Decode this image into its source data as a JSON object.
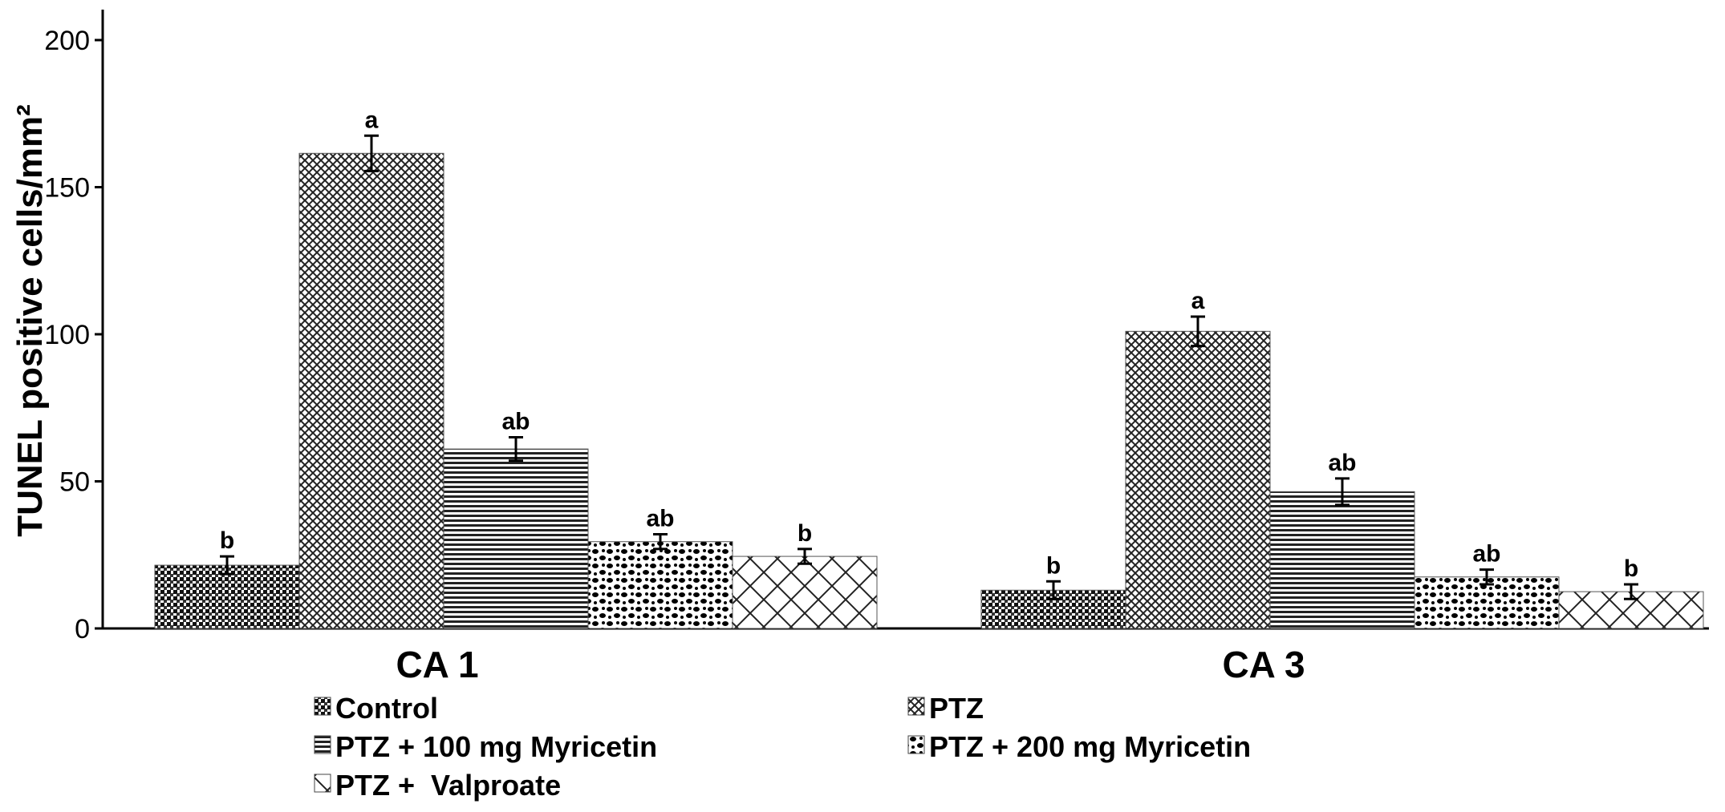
{
  "chart_data": {
    "type": "bar",
    "title": "",
    "xlabel": "",
    "ylabel": "TUNEL positive cells/mm²",
    "ylim": [
      0,
      210
    ],
    "yticks": [
      0,
      50,
      100,
      150,
      200
    ],
    "grid": false,
    "legend_position": "bottom",
    "categories": [
      "CA 1",
      "CA 3"
    ],
    "series": [
      {
        "name": "Control",
        "pattern": "dense-dots",
        "values": [
          21.5,
          13
        ],
        "errors": [
          3,
          3
        ],
        "labels": [
          "b",
          "b"
        ]
      },
      {
        "name": "PTZ",
        "pattern": "crosshatch",
        "values": [
          161.5,
          101
        ],
        "errors": [
          6,
          5
        ],
        "labels": [
          "a",
          "a"
        ]
      },
      {
        "name": "PTZ + 100 mg Myricetin",
        "pattern": "horizontal-lines",
        "values": [
          61,
          46.5
        ],
        "errors": [
          4,
          4.5
        ],
        "labels": [
          "ab",
          "ab"
        ]
      },
      {
        "name": "PTZ + 200 mg Myricetin",
        "pattern": "spots",
        "values": [
          29.5,
          17.5
        ],
        "errors": [
          2.5,
          2.5
        ],
        "labels": [
          "ab",
          "ab"
        ]
      },
      {
        "name": "PTZ +  Valproate",
        "pattern": "wide-crosshatch",
        "values": [
          24.5,
          12.5
        ],
        "errors": [
          2.5,
          2.5
        ],
        "labels": [
          "b",
          "b"
        ]
      }
    ],
    "colors": {
      "ink": "#000000",
      "background": "#ffffff"
    }
  }
}
